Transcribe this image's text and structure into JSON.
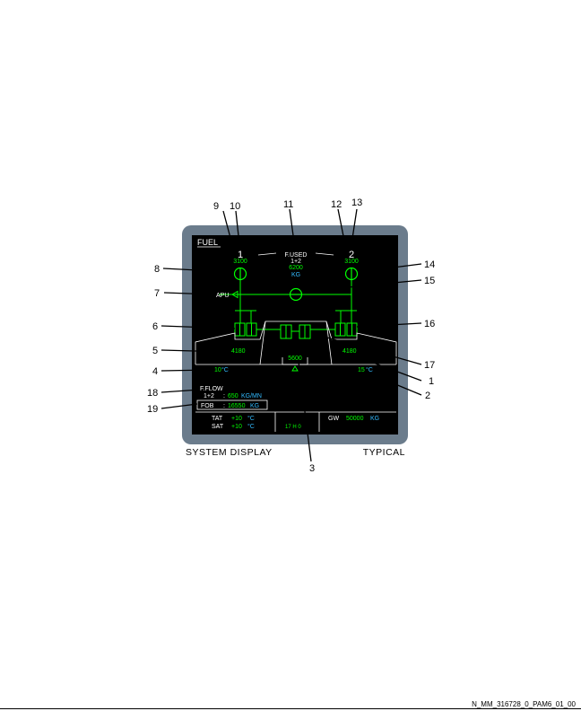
{
  "display": {
    "title": "FUEL",
    "fused_label": "F.USED",
    "fused_sub": "1+2",
    "fused_value": "6200",
    "fused_unit": "KG",
    "eng1": "1",
    "eng2": "2",
    "eng1_used": "3100",
    "eng2_used": "3100",
    "apu": "APU",
    "left_tank": "4180",
    "right_tank": "4180",
    "center_tank": "5600",
    "left_temp_value": "10",
    "left_temp_unit": "°C",
    "right_temp_value": "15",
    "right_temp_unit": "°C",
    "fflow_label": "F.FLOW",
    "fflow_sub": "1+2",
    "fflow_value": "650",
    "fflow_unit": "KG/MN",
    "fob_label": "FOB",
    "fob_value": "16550",
    "fob_unit": "KG",
    "tat_label": "TAT",
    "tat_value": "+10",
    "tat_unit": "°C",
    "sat_label": "SAT",
    "sat_value": "+10",
    "sat_unit": "°C",
    "time": "17 H 0",
    "gw_label": "GW",
    "gw_value": "50000",
    "gw_unit": "KG"
  },
  "callouts": [
    "1",
    "2",
    "3",
    "4",
    "5",
    "6",
    "7",
    "8",
    "9",
    "10",
    "11",
    "12",
    "13",
    "14",
    "15",
    "16",
    "17",
    "18",
    "19"
  ],
  "captions": {
    "left": "SYSTEM DISPLAY",
    "right": "TYPICAL",
    "ref": "N_MM_316728_0_PAM6_01_00"
  },
  "colors": {
    "green": "#00ff00",
    "cyan": "#33bbff",
    "white": "#ffffff",
    "frame": "#6b7c8c",
    "screen": "#000000"
  }
}
